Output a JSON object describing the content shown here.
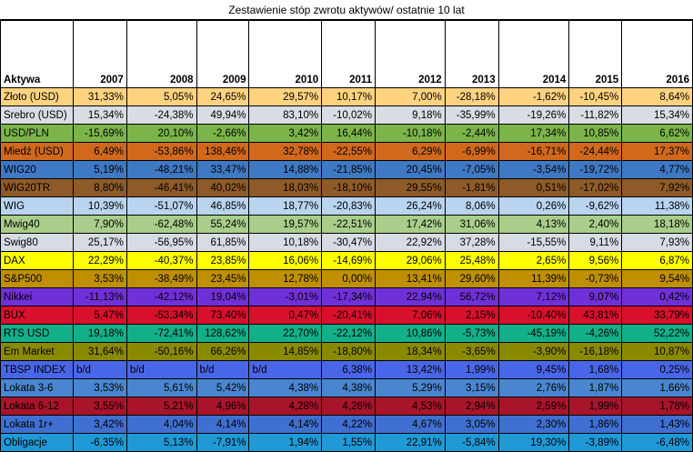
{
  "title": "Zestawienie stóp zwrotu aktywów/ ostatnie 10 lat",
  "columns": [
    "Aktywa",
    "2007",
    "2008",
    "2009",
    "2010",
    "2011",
    "2012",
    "2013",
    "2014",
    "2015",
    "2016"
  ],
  "rows": [
    {
      "name": "Złoto (USD)",
      "bg": "#ffd27f",
      "fg": "#000000",
      "values": [
        "31,33%",
        "5,05%",
        "24,65%",
        "29,57%",
        "10,17%",
        "7,00%",
        "-28,18%",
        "-1,62%",
        "-10,45%",
        "8,64%"
      ]
    },
    {
      "name": "Srebro (USD)",
      "bg": "#d9dde4",
      "fg": "#000000",
      "values": [
        "15,34%",
        "-24,38%",
        "49,94%",
        "83,10%",
        "-10,02%",
        "9,18%",
        "-35,99%",
        "-19,26%",
        "-11,82%",
        "15,34%"
      ]
    },
    {
      "name": "USD/PLN",
      "bg": "#7bb54a",
      "fg": "#000000",
      "values": [
        "-15,69%",
        "20,10%",
        "-2,66%",
        "3,42%",
        "16,44%",
        "-10,18%",
        "-2,44%",
        "17,34%",
        "10,85%",
        "6,62%"
      ]
    },
    {
      "name": "Miedź (USD)",
      "bg": "#d1681c",
      "fg": "#000000",
      "values": [
        "6,49%",
        "-53,86%",
        "138,46%",
        "32,78%",
        "-22,55%",
        "6,29%",
        "-6,99%",
        "-16,71%",
        "-24,44%",
        "17,37%"
      ]
    },
    {
      "name": "WIG20",
      "bg": "#3f79c4",
      "fg": "#000000",
      "values": [
        "5,19%",
        "-48,21%",
        "33,47%",
        "14,88%",
        "-21,85%",
        "20,45%",
        "-7,05%",
        "-3,54%",
        "-19,72%",
        "4,77%"
      ]
    },
    {
      "name": "WIG20TR",
      "bg": "#8e5a27",
      "fg": "#000000",
      "values": [
        "8,80%",
        "-46,41%",
        "40,02%",
        "18,03%",
        "-18,10%",
        "29,55%",
        "-1,81%",
        "0,51%",
        "-17,02%",
        "7,92%"
      ]
    },
    {
      "name": "WIG",
      "bg": "#b9d4ef",
      "fg": "#000000",
      "values": [
        "10,39%",
        "-51,07%",
        "46,85%",
        "18,77%",
        "-20,83%",
        "26,24%",
        "8,06%",
        "0,26%",
        "-9,62%",
        "11,38%"
      ]
    },
    {
      "name": "Mwig40",
      "bg": "#a9cd8a",
      "fg": "#000000",
      "values": [
        "7,90%",
        "-62,48%",
        "55,24%",
        "19,57%",
        "-22,51%",
        "17,42%",
        "31,06%",
        "4,13%",
        "2,40%",
        "18,18%"
      ]
    },
    {
      "name": "Swig80",
      "bg": "#d7dce4",
      "fg": "#000000",
      "values": [
        "25,17%",
        "-56,95%",
        "61,85%",
        "10,18%",
        "-30,47%",
        "22,92%",
        "37,28%",
        "-15,55%",
        "9,11%",
        "7,93%"
      ]
    },
    {
      "name": "DAX",
      "bg": "#ffff00",
      "fg": "#000000",
      "values": [
        "22,29%",
        "-40,37%",
        "23,85%",
        "16,06%",
        "-14,69%",
        "29,06%",
        "25,48%",
        "2,65%",
        "9,56%",
        "6,87%"
      ]
    },
    {
      "name": "S&P500",
      "bg": "#bf8f00",
      "fg": "#000000",
      "values": [
        "3,53%",
        "-38,49%",
        "23,45%",
        "12,78%",
        "0,00%",
        "13,41%",
        "29,60%",
        "11,39%",
        "-0,73%",
        "9,54%"
      ]
    },
    {
      "name": "Nikkei",
      "bg": "#7030d8",
      "fg": "#000000",
      "values": [
        "-11,13%",
        "-42,12%",
        "19,04%",
        "-3,01%",
        "-17,34%",
        "22,94%",
        "56,72%",
        "7,12%",
        "9,07%",
        "0,42%"
      ]
    },
    {
      "name": "BUX",
      "bg": "#d8102c",
      "fg": "#000000",
      "values": [
        "5,47%",
        "-53,34%",
        "73,40%",
        "0,47%",
        "-20,41%",
        "7,06%",
        "2,15%",
        "-10,40%",
        "43,81%",
        "33,79%"
      ]
    },
    {
      "name": "RTS USD",
      "bg": "#12b08a",
      "fg": "#000000",
      "values": [
        "19,18%",
        "-72,41%",
        "128,62%",
        "22,70%",
        "-22,12%",
        "10,86%",
        "-5,73%",
        "-45,19%",
        "-4,26%",
        "52,22%"
      ]
    },
    {
      "name": "Em Market",
      "bg": "#8a8a00",
      "fg": "#000000",
      "values": [
        "31,64%",
        "-50,16%",
        "66,26%",
        "14,85%",
        "-18,80%",
        "18,34%",
        "-3,65%",
        "-3,90%",
        "-16,18%",
        "10,87%"
      ]
    },
    {
      "name": "TBSP INDEX",
      "bg": "#4a66e8",
      "fg": "#000000",
      "values": [
        "b/d",
        "b/d",
        "b/d",
        "b/d",
        "6,38%",
        "13,42%",
        "1,99%",
        "9,45%",
        "1,68%",
        "0,25%"
      ]
    },
    {
      "name": "Lokata 3-6",
      "bg": "#4a86d0",
      "fg": "#000000",
      "values": [
        "3,53%",
        "5,61%",
        "5,42%",
        "4,38%",
        "4,38%",
        "5,29%",
        "3,15%",
        "2,76%",
        "1,87%",
        "1,66%"
      ]
    },
    {
      "name": "Lokata 6-12",
      "bg": "#a8142a",
      "fg": "#000000",
      "values": [
        "3,55%",
        "5,21%",
        "4,96%",
        "4,28%",
        "4,26%",
        "4,53%",
        "2,94%",
        "2,59%",
        "1,99%",
        "1,78%"
      ]
    },
    {
      "name": "Lokata 1r+",
      "bg": "#3f6fd0",
      "fg": "#000000",
      "values": [
        "3,42%",
        "4,04%",
        "4,14%",
        "4,14%",
        "4,22%",
        "4,67%",
        "3,05%",
        "2,30%",
        "1,86%",
        "1,43%"
      ]
    },
    {
      "name": "Obligacje",
      "bg": "#1f9ad6",
      "fg": "#000000",
      "values": [
        "-6,35%",
        "5,13%",
        "-7,91%",
        "1,94%",
        "1,55%",
        "22,91%",
        "-5,84%",
        "19,30%",
        "-3,89%",
        "-6,48%"
      ]
    }
  ]
}
